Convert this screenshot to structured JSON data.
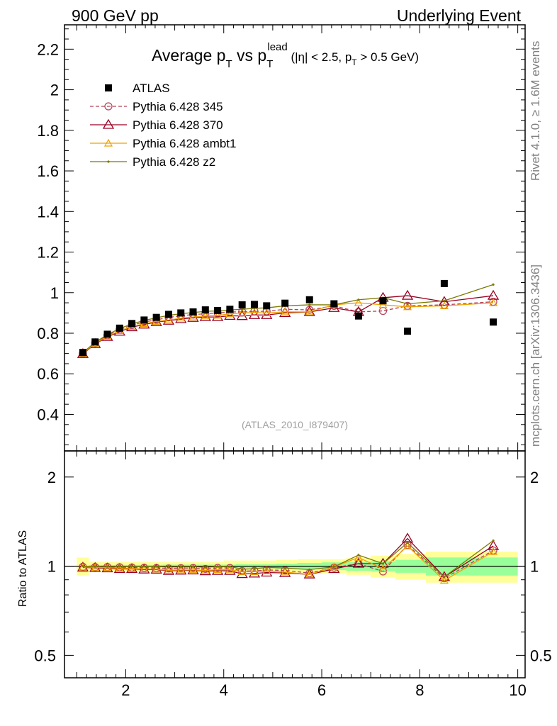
{
  "header": {
    "left": "900 GeV pp",
    "right": "Underlying Event"
  },
  "side_labels": {
    "top": "Rivet 4.1.0, ≥ 1.6M events",
    "bottom": "mcplots.cern.ch [arXiv:1306.3436]"
  },
  "chart_data": [
    {
      "type": "scatter",
      "title_parts": {
        "main": "Average p",
        "sub1": "T",
        "vs": " vs p",
        "sub2": "T",
        "sup2": "lead",
        "cut_open": " (|η| < 2.5, p",
        "cut_sub": "T",
        "cut_close": " > 0.5 GeV)"
      },
      "watermark": "(ATLAS_2010_I879407)",
      "xlim": [
        0.75,
        10.15
      ],
      "ylim": [
        0.22,
        2.32
      ],
      "y_ticks": [
        0.4,
        0.6,
        0.8,
        1,
        1.2,
        1.4,
        1.6,
        1.8,
        2,
        2.2
      ],
      "y_tick_labels": [
        "0.4",
        "0.6",
        "0.8",
        "1",
        "1.2",
        "1.4",
        "1.6",
        "1.8",
        "2",
        "2.2"
      ],
      "x": [
        1.125,
        1.375,
        1.625,
        1.875,
        2.125,
        2.375,
        2.625,
        2.875,
        3.125,
        3.375,
        3.625,
        3.875,
        4.125,
        4.375,
        4.625,
        4.875,
        5.25,
        5.75,
        6.25,
        6.75,
        7.25,
        7.75,
        8.5,
        9.5
      ],
      "series": [
        {
          "name": "ATLAS",
          "style": "data",
          "color": "#000000",
          "values": [
            0.705,
            0.757,
            0.795,
            0.825,
            0.848,
            0.865,
            0.878,
            0.893,
            0.9,
            0.905,
            0.915,
            0.912,
            0.918,
            0.94,
            0.942,
            0.935,
            0.948,
            0.965,
            0.945,
            0.885,
            0.96,
            0.81,
            1.045,
            0.855
          ]
        },
        {
          "name": "Pythia 6.428 345",
          "style": "open-circle-dashed",
          "color": "#b5405a",
          "values": [
            0.7,
            0.752,
            0.79,
            0.818,
            0.84,
            0.855,
            0.866,
            0.878,
            0.886,
            0.892,
            0.896,
            0.9,
            0.905,
            0.905,
            0.908,
            0.908,
            0.918,
            0.915,
            0.935,
            0.905,
            0.91,
            0.935,
            0.94,
            0.955
          ]
        },
        {
          "name": "Pythia 6.428 370",
          "style": "open-triangle",
          "color": "#990022",
          "values": [
            0.698,
            0.747,
            0.782,
            0.808,
            0.83,
            0.843,
            0.855,
            0.862,
            0.87,
            0.876,
            0.88,
            0.88,
            0.886,
            0.885,
            0.89,
            0.89,
            0.9,
            0.905,
            0.925,
            0.905,
            0.975,
            0.985,
            0.955,
            0.985
          ]
        },
        {
          "name": "Pythia 6.428 ambt1",
          "style": "open-triangle-small",
          "color": "#f0a000",
          "values": [
            0.7,
            0.75,
            0.785,
            0.812,
            0.833,
            0.847,
            0.858,
            0.865,
            0.874,
            0.88,
            0.885,
            0.888,
            0.895,
            0.9,
            0.902,
            0.9,
            0.905,
            0.905,
            0.94,
            0.95,
            0.94,
            0.93,
            0.935,
            0.95
          ]
        },
        {
          "name": "Pythia 6.428 z2",
          "style": "dot-line",
          "color": "#7a7a00",
          "values": [
            0.705,
            0.755,
            0.793,
            0.823,
            0.846,
            0.863,
            0.876,
            0.888,
            0.896,
            0.902,
            0.908,
            0.91,
            0.915,
            0.918,
            0.923,
            0.925,
            0.935,
            0.94,
            0.94,
            0.965,
            0.975,
            0.945,
            0.96,
            1.04
          ]
        }
      ]
    },
    {
      "type": "scatter",
      "ylabel": "Ratio to ATLAS",
      "ylim": [
        0.42,
        2.45
      ],
      "ylog": true,
      "y_ticks": [
        0.5,
        1,
        2
      ],
      "y_tick_labels": [
        "0.5",
        "1",
        "2"
      ],
      "xlim": [
        0.75,
        10.15
      ],
      "x_ticks": [
        2,
        4,
        6,
        8,
        10
      ],
      "x_tick_labels": [
        "2",
        "4",
        "6",
        "8",
        "10"
      ],
      "x": [
        1.125,
        1.375,
        1.625,
        1.875,
        2.125,
        2.375,
        2.625,
        2.875,
        3.125,
        3.375,
        3.625,
        3.875,
        4.125,
        4.375,
        4.625,
        4.875,
        5.25,
        5.75,
        6.25,
        6.75,
        7.25,
        7.75,
        8.5,
        9.5
      ],
      "band_yellow": [
        0.07,
        0.035,
        0.035,
        0.035,
        0.035,
        0.035,
        0.035,
        0.035,
        0.035,
        0.035,
        0.035,
        0.035,
        0.045,
        0.045,
        0.045,
        0.045,
        0.05,
        0.055,
        0.055,
        0.065,
        0.085,
        0.1,
        0.12,
        0.12
      ],
      "band_green": [
        0.0,
        0.01,
        0.01,
        0.01,
        0.01,
        0.01,
        0.01,
        0.012,
        0.012,
        0.012,
        0.012,
        0.012,
        0.012,
        0.015,
        0.015,
        0.015,
        0.02,
        0.025,
        0.03,
        0.035,
        0.04,
        0.05,
        0.07,
        0.07
      ],
      "series": [
        {
          "name": "Pythia 6.428 345",
          "color": "#b5405a",
          "values": [
            0.995,
            0.993,
            0.994,
            0.992,
            0.99,
            0.988,
            0.986,
            0.983,
            0.985,
            0.986,
            0.979,
            0.987,
            0.986,
            0.963,
            0.964,
            0.971,
            0.968,
            0.948,
            0.989,
            1.02,
            0.96,
            1.18,
            0.91,
            1.13
          ]
        },
        {
          "name": "Pythia 6.428 370",
          "color": "#990022",
          "values": [
            0.99,
            0.987,
            0.984,
            0.979,
            0.979,
            0.975,
            0.974,
            0.965,
            0.967,
            0.968,
            0.962,
            0.965,
            0.965,
            0.941,
            0.945,
            0.952,
            0.949,
            0.938,
            0.979,
            1.02,
            1.02,
            1.24,
            0.92,
            1.17
          ]
        },
        {
          "name": "Pythia 6.428 ambt1",
          "color": "#f0a000",
          "values": [
            0.993,
            0.991,
            0.988,
            0.984,
            0.982,
            0.979,
            0.977,
            0.969,
            0.971,
            0.972,
            0.967,
            0.974,
            0.975,
            0.957,
            0.958,
            0.963,
            0.955,
            0.938,
            0.995,
            1.07,
            0.98,
            1.17,
            0.895,
            1.12
          ]
        },
        {
          "name": "Pythia 6.428 z2",
          "color": "#7a7a00",
          "values": [
            1.0,
            0.998,
            0.997,
            0.998,
            0.998,
            0.998,
            0.998,
            0.995,
            0.996,
            0.997,
            0.992,
            0.998,
            0.997,
            0.977,
            0.98,
            0.99,
            0.986,
            0.974,
            0.995,
            1.09,
            1.02,
            1.2,
            0.92,
            1.22
          ]
        }
      ]
    }
  ]
}
